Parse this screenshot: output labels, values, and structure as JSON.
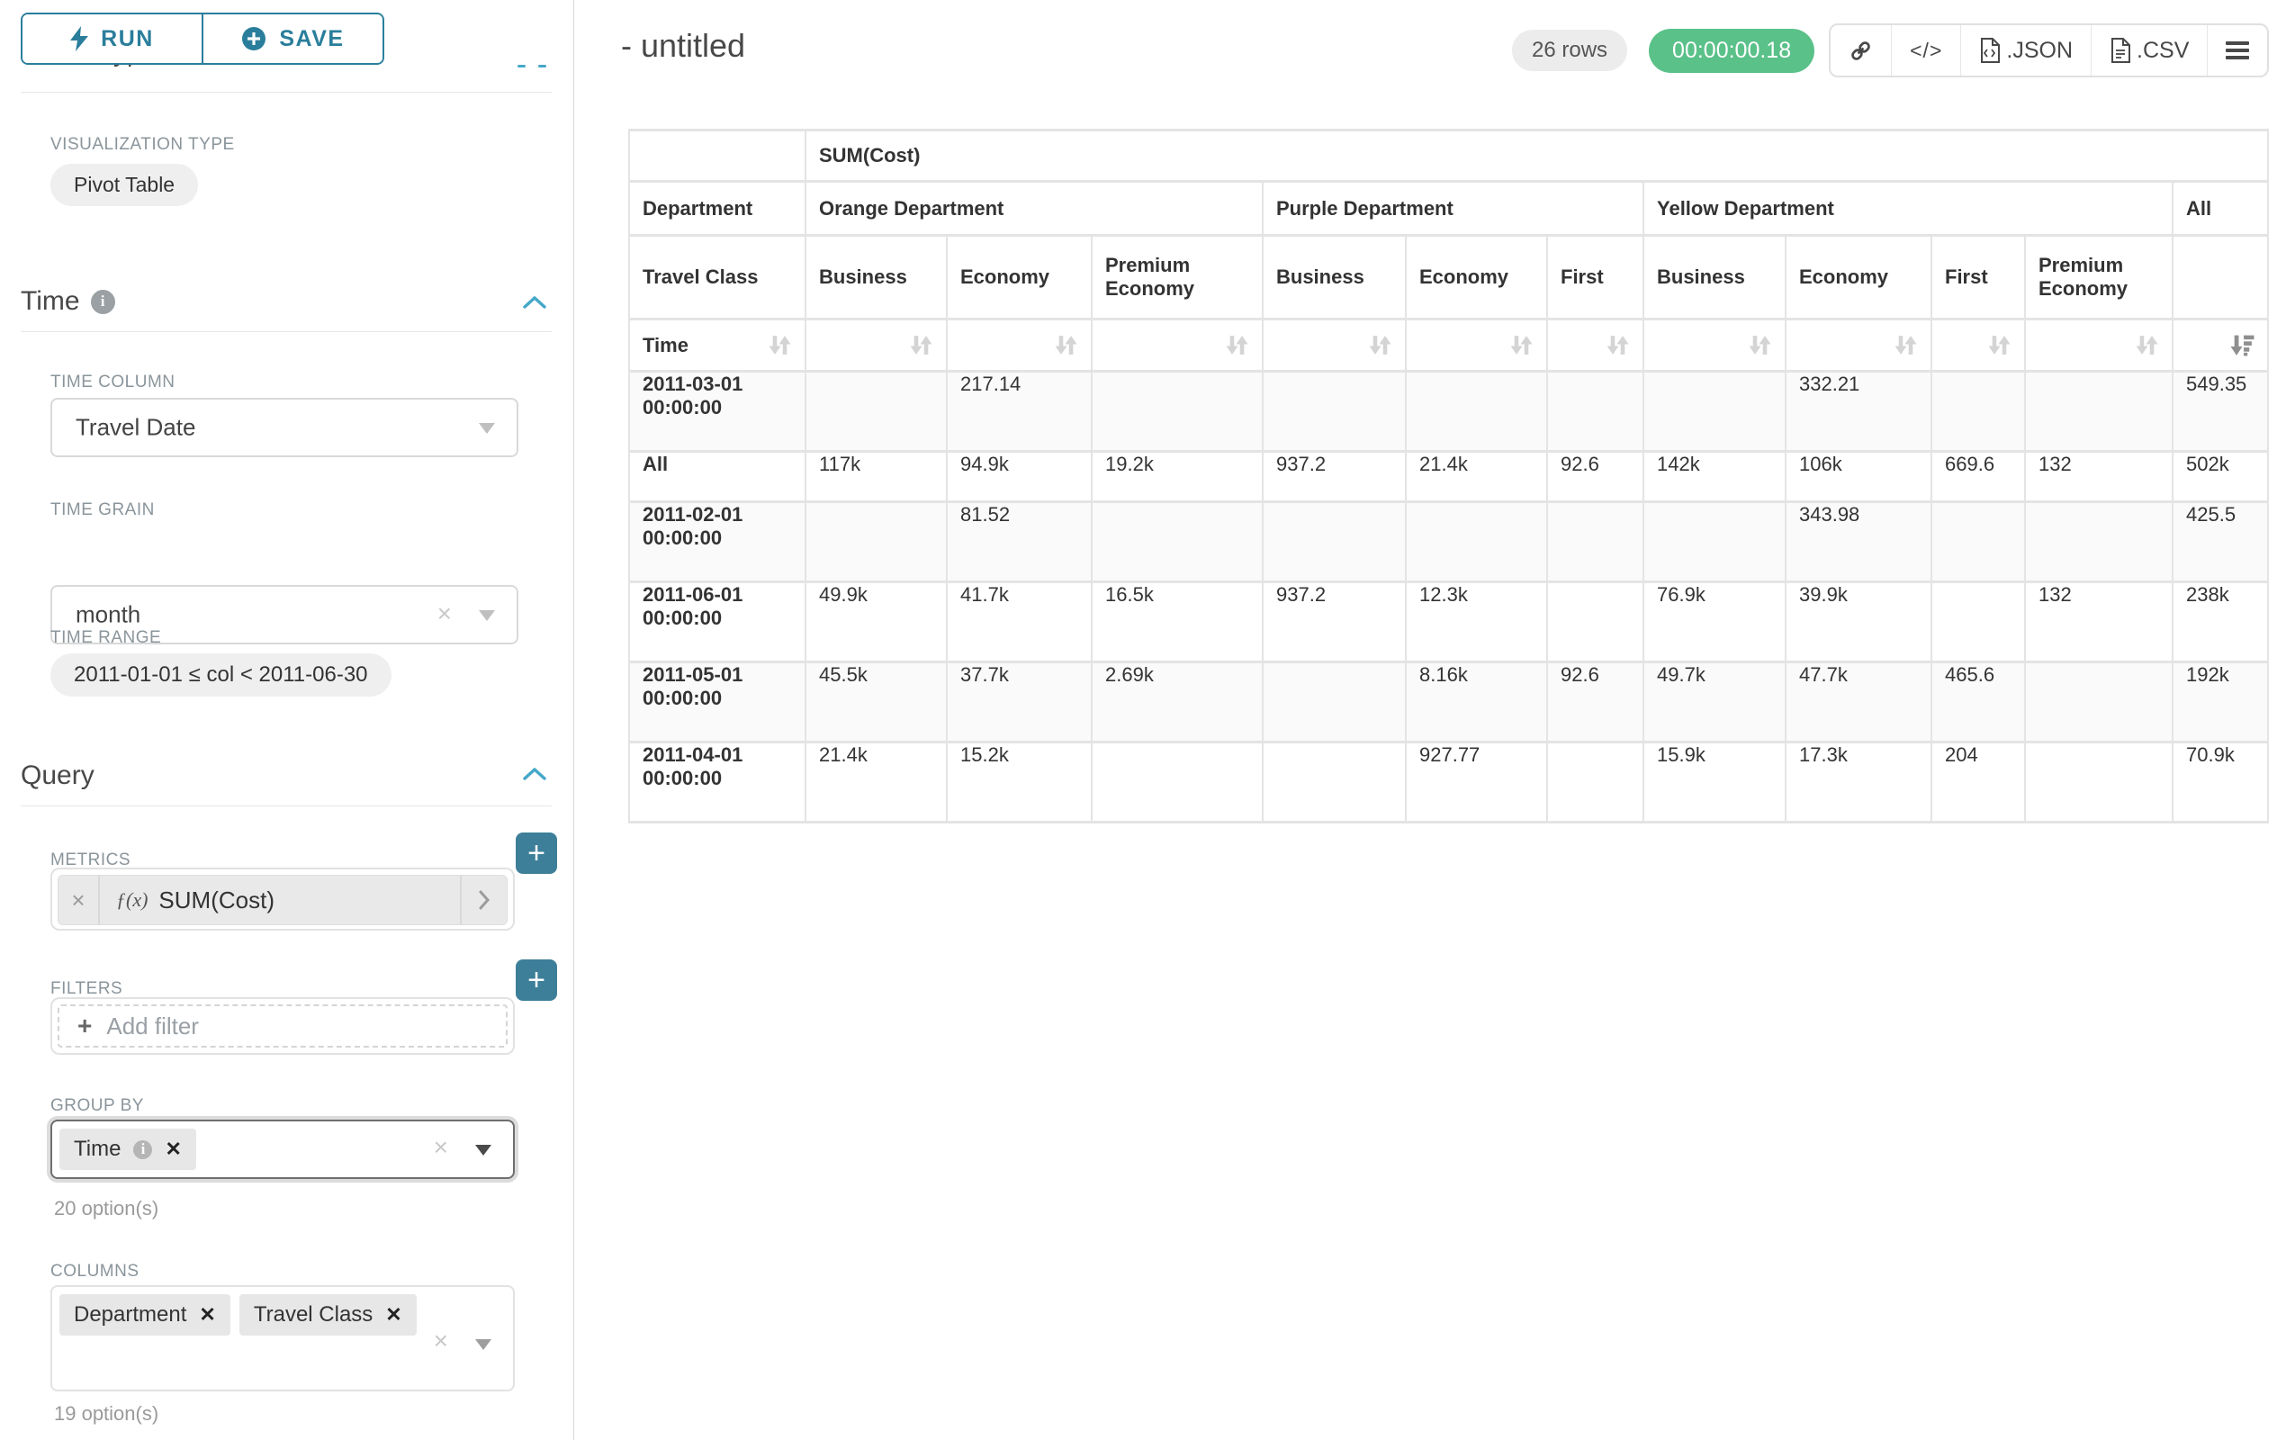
{
  "sidebar": {
    "run_label": "RUN",
    "save_label": "SAVE",
    "chart_type_heading": "Chart Type",
    "visualization_type_label": "VISUALIZATION TYPE",
    "visualization_type_value": "Pivot Table",
    "time": {
      "title": "Time",
      "time_column_label": "TIME COLUMN",
      "time_column_value": "Travel Date",
      "time_grain_label": "TIME GRAIN",
      "time_grain_value": "month",
      "time_range_label": "TIME RANGE",
      "time_range_value": "2011-01-01 ≤ col < 2011-06-30"
    },
    "query": {
      "title": "Query",
      "metrics_label": "METRICS",
      "metric_function_prefix": "ƒ(x)",
      "metric_value": "SUM(Cost)",
      "filters_label": "FILTERS",
      "add_filter_label": "Add filter",
      "group_by_label": "GROUP BY",
      "group_by_values": [
        "Time"
      ],
      "group_by_hint": "20 option(s)",
      "columns_label": "COLUMNS",
      "columns_values": [
        "Department",
        "Travel Class"
      ],
      "columns_hint": "19 option(s)"
    }
  },
  "header": {
    "title": "- untitled",
    "row_count_badge": "26 rows",
    "timer_badge": "00:00:00.18",
    "toolbar": {
      "json_label": ".JSON",
      "csv_label": ".CSV"
    }
  },
  "pivot_table": {
    "metric_header": "SUM(Cost)",
    "department_header_label": "Department",
    "travel_class_header_label": "Travel Class",
    "time_header_label": "Time",
    "groups": [
      {
        "label": "Orange Department",
        "classes": [
          "Business",
          "Economy",
          "Premium Economy"
        ]
      },
      {
        "label": "Purple Department",
        "classes": [
          "Business",
          "Economy",
          "First"
        ]
      },
      {
        "label": "Yellow Department",
        "classes": [
          "Business",
          "Economy",
          "First",
          "Premium Economy"
        ]
      },
      {
        "label": "All",
        "classes": [
          ""
        ]
      }
    ],
    "rows": [
      {
        "label": "2011-03-01 00:00:00",
        "values": [
          "",
          "217.14",
          "",
          "",
          "",
          "",
          "",
          "332.21",
          "",
          "",
          "549.35"
        ]
      },
      {
        "label": "All",
        "values": [
          "117k",
          "94.9k",
          "19.2k",
          "937.2",
          "21.4k",
          "92.6",
          "142k",
          "106k",
          "669.6",
          "132",
          "502k"
        ]
      },
      {
        "label": "2011-02-01 00:00:00",
        "values": [
          "",
          "81.52",
          "",
          "",
          "",
          "",
          "",
          "343.98",
          "",
          "",
          "425.5"
        ]
      },
      {
        "label": "2011-06-01 00:00:00",
        "values": [
          "49.9k",
          "41.7k",
          "16.5k",
          "937.2",
          "12.3k",
          "",
          "76.9k",
          "39.9k",
          "",
          "132",
          "238k"
        ]
      },
      {
        "label": "2011-05-01 00:00:00",
        "values": [
          "45.5k",
          "37.7k",
          "2.69k",
          "",
          "8.16k",
          "92.6",
          "49.7k",
          "47.7k",
          "465.6",
          "",
          "192k"
        ]
      },
      {
        "label": "2011-04-01 00:00:00",
        "values": [
          "21.4k",
          "15.2k",
          "",
          "",
          "927.77",
          "",
          "15.9k",
          "17.3k",
          "204",
          "",
          "70.9k"
        ]
      }
    ]
  },
  "colors": {
    "accent_teal": "#2a7e9b",
    "accent_teal_light": "#45a8c9",
    "add_button_teal": "#3d7f99",
    "timer_green": "#5ac189"
  }
}
